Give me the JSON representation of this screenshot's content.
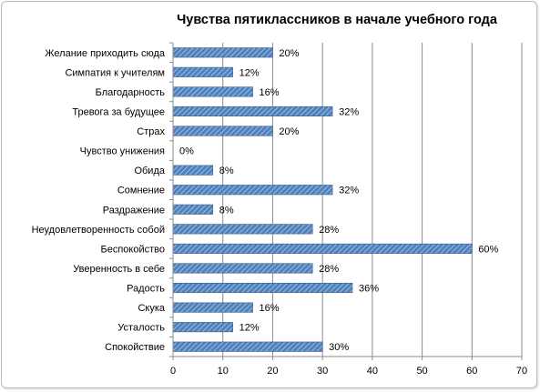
{
  "chart_data": {
    "type": "bar",
    "orientation": "horizontal",
    "title": "Чувства пятиклассников в начале учебного года",
    "categories": [
      "Желание приходить сюда",
      "Симпатия к учителям",
      "Благодарность",
      "Тревога за будущее",
      "Страх",
      "Чувство унижения",
      "Обида",
      "Сомнение",
      "Раздражение",
      "Неудовлетворенность собой",
      "Беспокойство",
      "Уверенность в себе",
      "Радость",
      "Скука",
      "Усталость",
      "Спокойствие"
    ],
    "values": [
      20,
      12,
      16,
      32,
      20,
      0,
      8,
      32,
      8,
      28,
      60,
      28,
      36,
      16,
      12,
      30
    ],
    "data_labels": [
      "20%",
      "12%",
      "16%",
      "32%",
      "20%",
      "0%",
      "8%",
      "32%",
      "8%",
      "28%",
      "60%",
      "28%",
      "36%",
      "16%",
      "12%",
      "30%"
    ],
    "xlim": [
      0,
      70
    ],
    "x_ticks": [
      0,
      10,
      20,
      30,
      40,
      50,
      60,
      70
    ],
    "x_tick_labels": [
      "0",
      "10",
      "20",
      "30",
      "40",
      "50",
      "60",
      "70"
    ],
    "grid": "vertical",
    "legend": "none",
    "bar_color": "#4f81bd",
    "bar_pattern": "diagonal-hatch"
  }
}
